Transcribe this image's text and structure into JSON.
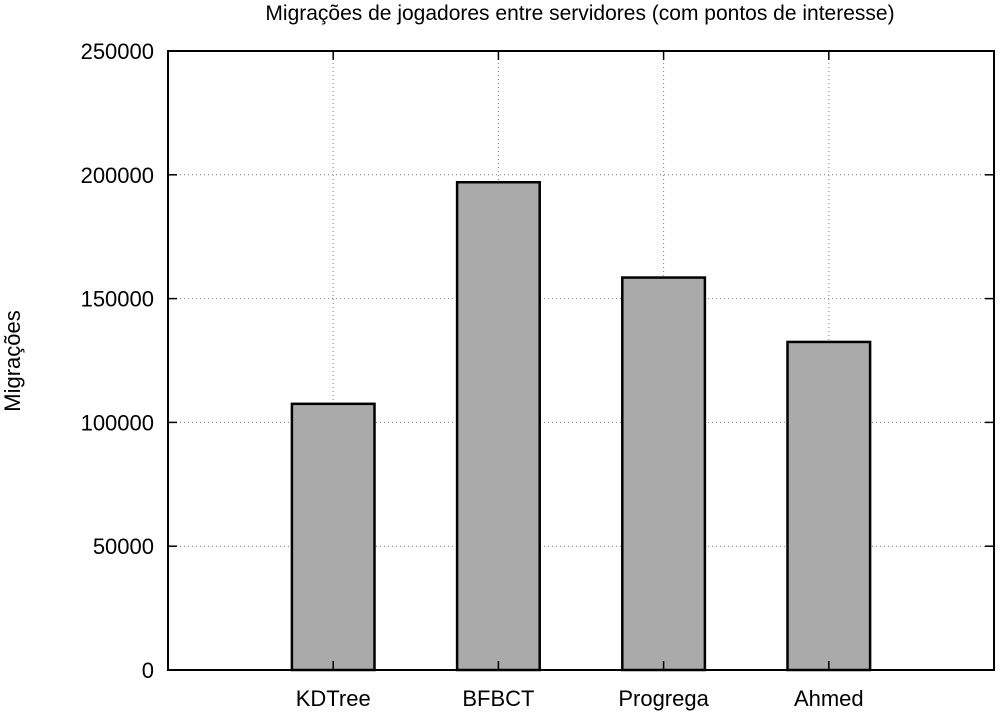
{
  "chart_data": {
    "type": "bar",
    "title": "Migrações de jogadores entre servidores (com pontos de interesse)",
    "xlabel": "",
    "ylabel": "Migrações",
    "categories": [
      "KDTree",
      "BFBCT",
      "Progrega",
      "Ahmed"
    ],
    "values": [
      107500,
      197000,
      158500,
      132500
    ],
    "ylim": [
      0,
      250000
    ],
    "yticks": [
      "0",
      "50000",
      "100000",
      "150000",
      "200000",
      "250000"
    ],
    "grid": true,
    "legend": "none",
    "bar_color": "#aaaaaa"
  }
}
